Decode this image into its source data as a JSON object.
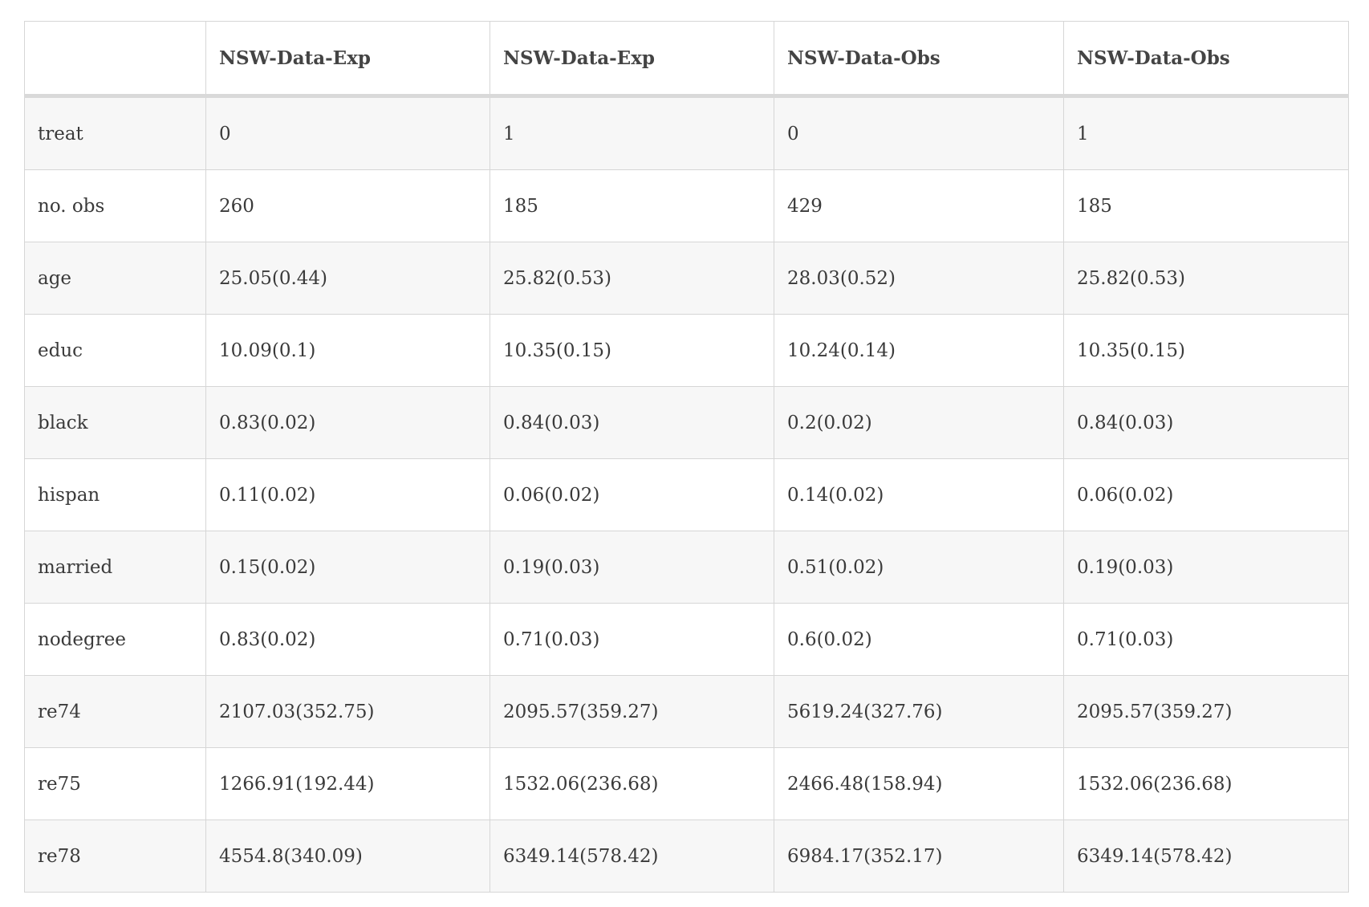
{
  "table": {
    "headers": [
      "",
      "NSW-Data-Exp",
      "NSW-Data-Exp",
      "NSW-Data-Obs",
      "NSW-Data-Obs"
    ],
    "rows": [
      [
        "treat",
        "0",
        "1",
        "0",
        "1"
      ],
      [
        "no. obs",
        "260",
        "185",
        "429",
        "185"
      ],
      [
        "age",
        "25.05(0.44)",
        "25.82(0.53)",
        "28.03(0.52)",
        "25.82(0.53)"
      ],
      [
        "educ",
        "10.09(0.1)",
        "10.35(0.15)",
        "10.24(0.14)",
        "10.35(0.15)"
      ],
      [
        "black",
        "0.83(0.02)",
        "0.84(0.03)",
        "0.2(0.02)",
        "0.84(0.03)"
      ],
      [
        "hispan",
        "0.11(0.02)",
        "0.06(0.02)",
        "0.14(0.02)",
        "0.06(0.02)"
      ],
      [
        "married",
        "0.15(0.02)",
        "0.19(0.03)",
        "0.51(0.02)",
        "0.19(0.03)"
      ],
      [
        "nodegree",
        "0.83(0.02)",
        "0.71(0.03)",
        "0.6(0.02)",
        "0.71(0.03)"
      ],
      [
        "re74",
        "2107.03(352.75)",
        "2095.57(359.27)",
        "5619.24(327.76)",
        "2095.57(359.27)"
      ],
      [
        "re75",
        "1266.91(192.44)",
        "1532.06(236.68)",
        "2466.48(158.94)",
        "1532.06(236.68)"
      ],
      [
        "re78",
        "4554.8(340.09)",
        "6349.14(578.42)",
        "6984.17(352.17)",
        "6349.14(578.42)"
      ]
    ]
  }
}
